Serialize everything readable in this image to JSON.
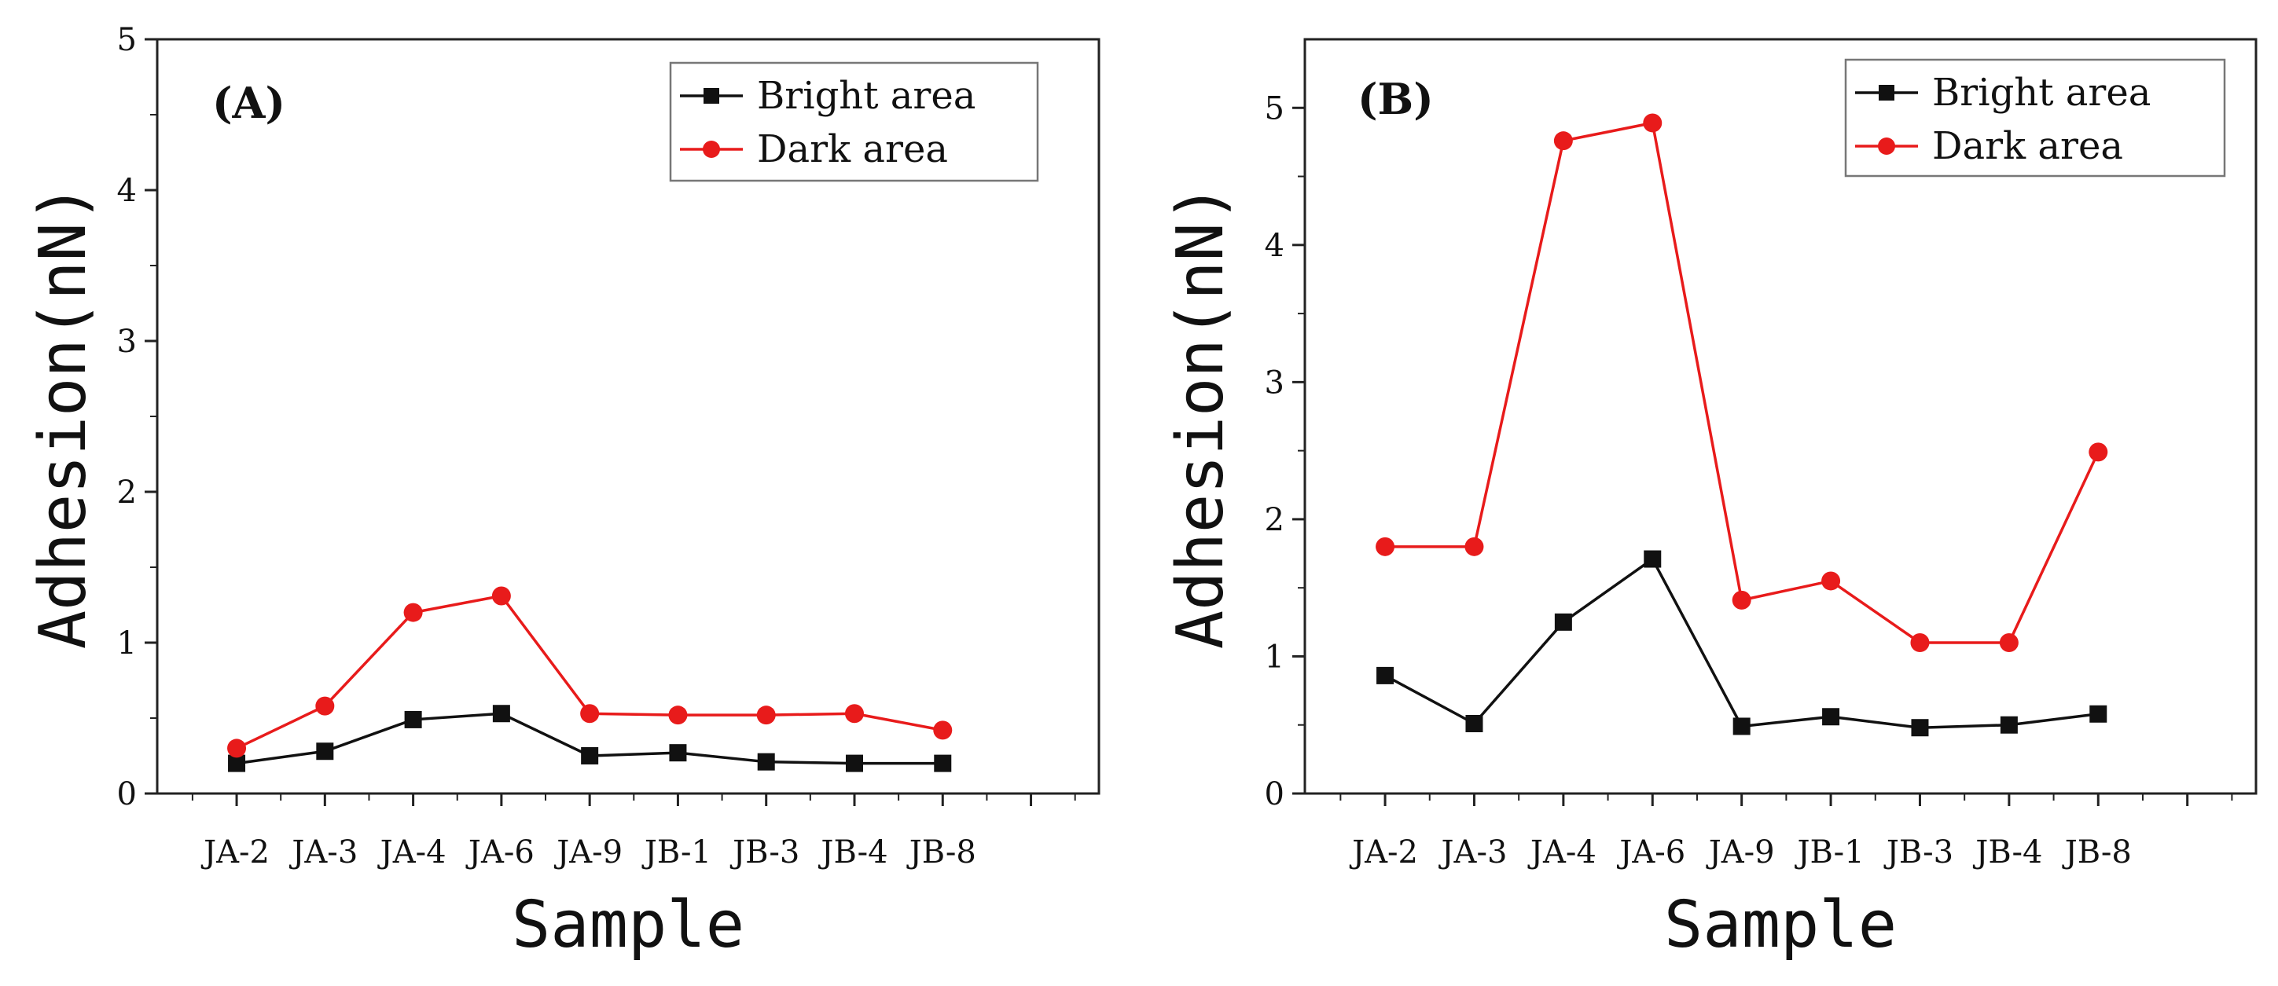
{
  "figure": {
    "colors": {
      "bright": "#111111",
      "dark": "#e81b1b",
      "axis": "#222222",
      "legend_border": "#777777"
    }
  },
  "chart_data": [
    {
      "type": "line",
      "panel_label": "(A)",
      "categories": [
        "JA-2",
        "JA-3",
        "JA-4",
        "JA-6",
        "JA-9",
        "JB-1",
        "JB-3",
        "JB-4",
        "JB-8"
      ],
      "series": [
        {
          "name": "Bright area",
          "marker": "square",
          "values": [
            0.2,
            0.28,
            0.49,
            0.53,
            0.25,
            0.27,
            0.21,
            0.2,
            0.2
          ]
        },
        {
          "name": "Dark area",
          "marker": "circle",
          "values": [
            0.3,
            0.58,
            1.2,
            1.31,
            0.53,
            0.52,
            0.52,
            0.53,
            0.42
          ]
        }
      ],
      "xlabel": "Sample",
      "ylabel": "Adhesion(nN)",
      "ylim": [
        0,
        5
      ],
      "yticks": [
        0,
        1,
        2,
        3,
        4,
        5
      ],
      "legend_position": "top-right",
      "grid": false
    },
    {
      "type": "line",
      "panel_label": "(B)",
      "categories": [
        "JA-2",
        "JA-3",
        "JA-4",
        "JA-6",
        "JA-9",
        "JB-1",
        "JB-3",
        "JB-4",
        "JB-8"
      ],
      "series": [
        {
          "name": "Bright area",
          "marker": "square",
          "values": [
            0.86,
            0.51,
            1.25,
            1.71,
            0.49,
            0.56,
            0.48,
            0.5,
            0.58
          ]
        },
        {
          "name": "Dark area",
          "marker": "circle",
          "values": [
            1.8,
            1.8,
            4.76,
            4.89,
            1.41,
            1.55,
            1.1,
            1.1,
            2.49
          ]
        }
      ],
      "xlabel": "Sample",
      "ylabel": "Adhesion(nN)",
      "ylim": [
        0,
        5.5
      ],
      "yticks": [
        0,
        1,
        2,
        3,
        4,
        5
      ],
      "legend_position": "top-right",
      "grid": false
    }
  ]
}
